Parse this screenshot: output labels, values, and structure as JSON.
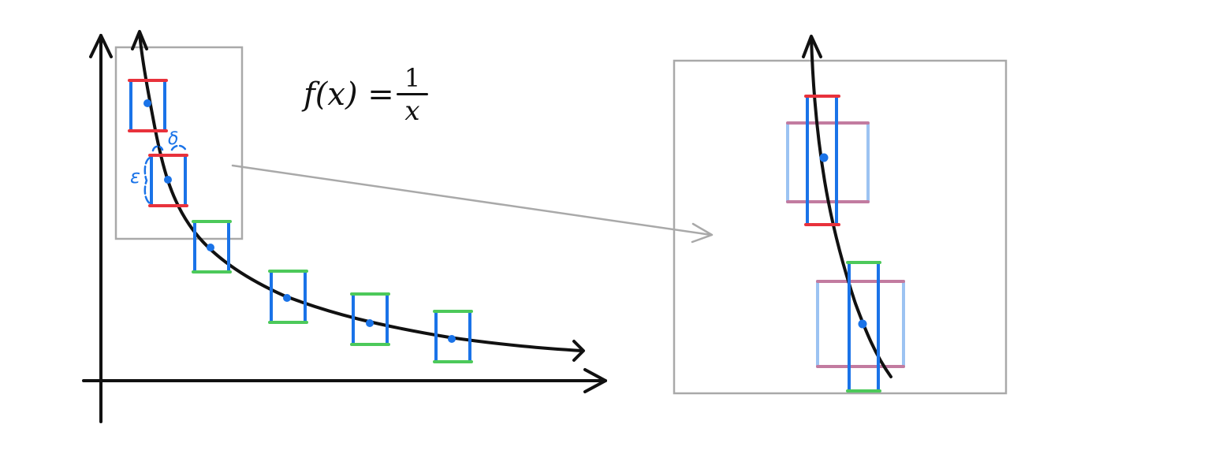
{
  "formula": {
    "lhs": "f(x) =",
    "numerator": "1",
    "denominator": "x"
  },
  "labels": {
    "delta": "δ",
    "epsilon": "ε"
  },
  "colors": {
    "curve": "#111111",
    "interval_x": "#1a73e8",
    "interval_x_light": "#9cc3f2",
    "fail_bound": "#e8323c",
    "pass_bound": "#4cc95a",
    "zoomed_bound": "#c27ba0",
    "frame": "#a9a9a9",
    "point": "#1a73e8"
  },
  "icons": {
    "zoom_arrow": "arrow-right-icon"
  }
}
